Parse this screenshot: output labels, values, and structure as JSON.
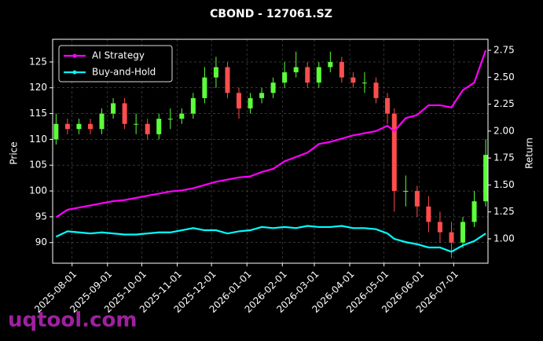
{
  "chart_data": {
    "type": "candlestick",
    "title": "CBOND - 127061.SZ",
    "ylabel": "Price",
    "y2label": "Return",
    "watermark": "uqtool.com",
    "x": [
      "2025-07-18",
      "2025-07-28",
      "2025-08-07",
      "2025-08-17",
      "2025-08-27",
      "2025-09-06",
      "2025-09-16",
      "2025-09-26",
      "2025-10-06",
      "2025-10-16",
      "2025-10-26",
      "2025-11-05",
      "2025-11-15",
      "2025-11-25",
      "2025-12-05",
      "2025-12-15",
      "2025-12-25",
      "2026-01-04",
      "2026-01-14",
      "2026-01-24",
      "2026-02-03",
      "2026-02-13",
      "2026-02-23",
      "2026-03-05",
      "2026-03-15",
      "2026-03-25",
      "2026-04-04",
      "2026-04-14",
      "2026-04-24",
      "2026-05-04",
      "2026-05-10",
      "2026-05-20",
      "2026-05-30",
      "2026-06-09",
      "2026-06-19",
      "2026-06-29",
      "2026-07-09",
      "2026-07-19",
      "2026-07-29"
    ],
    "open": [
      110,
      113,
      112,
      113,
      112,
      115,
      117,
      113,
      113,
      111,
      114,
      114,
      115,
      118,
      122,
      124,
      119,
      116,
      118,
      119,
      121,
      123,
      124,
      121,
      124,
      125,
      122,
      121,
      121,
      118,
      115,
      100,
      100,
      97,
      94,
      92,
      90,
      94,
      98
    ],
    "high": [
      115,
      114,
      114,
      114,
      116,
      118,
      118,
      115,
      114,
      115,
      116,
      116,
      119,
      124,
      126,
      125,
      120,
      119,
      120,
      122,
      125,
      127,
      125,
      125,
      127,
      126,
      123,
      123,
      122,
      119,
      116,
      103,
      101,
      99,
      96,
      94,
      95,
      100,
      110
    ],
    "low": [
      109,
      111,
      111,
      111,
      111,
      114,
      112,
      111,
      110,
      110,
      112,
      113,
      114,
      117,
      120,
      118,
      114,
      115,
      117,
      118,
      120,
      122,
      120,
      120,
      123,
      121,
      120,
      119,
      117,
      113,
      96,
      97,
      95,
      92,
      90,
      87,
      89,
      93,
      97
    ],
    "close": [
      113,
      112,
      113,
      112,
      115,
      117,
      113,
      113,
      111,
      114,
      114,
      115,
      118,
      122,
      124,
      119,
      116,
      118,
      119,
      121,
      123,
      124,
      121,
      124,
      125,
      122,
      121,
      121,
      118,
      115,
      100,
      100,
      97,
      94,
      92,
      90,
      94,
      98,
      107
    ],
    "up_color": "#5cff3a",
    "down_color": "#ff4d4d",
    "series": [
      {
        "name": "AI Strategy",
        "color": "#ff00ff",
        "axis": "y2",
        "values": [
          1.2,
          1.27,
          1.29,
          1.31,
          1.33,
          1.35,
          1.36,
          1.38,
          1.4,
          1.42,
          1.44,
          1.45,
          1.47,
          1.5,
          1.53,
          1.55,
          1.57,
          1.58,
          1.62,
          1.65,
          1.72,
          1.76,
          1.8,
          1.88,
          1.9,
          1.93,
          1.96,
          1.98,
          2.0,
          2.05,
          2.0,
          2.12,
          2.15,
          2.24,
          2.24,
          2.22,
          2.38,
          2.45,
          2.75
        ]
      },
      {
        "name": "Buy-and-Hold",
        "color": "#00ffff",
        "axis": "y2",
        "values": [
          1.02,
          1.07,
          1.06,
          1.05,
          1.06,
          1.05,
          1.04,
          1.04,
          1.05,
          1.06,
          1.06,
          1.08,
          1.1,
          1.08,
          1.08,
          1.05,
          1.07,
          1.08,
          1.11,
          1.1,
          1.11,
          1.1,
          1.12,
          1.11,
          1.11,
          1.12,
          1.1,
          1.1,
          1.09,
          1.05,
          1.0,
          0.97,
          0.95,
          0.92,
          0.92,
          0.88,
          0.94,
          0.98,
          1.05
        ]
      }
    ],
    "xlim": [
      "2025-07-15",
      "2026-07-31"
    ],
    "xticks": [
      "2025-08-01",
      "2025-09-01",
      "2025-10-01",
      "2025-11-01",
      "2025-12-01",
      "2026-01-01",
      "2026-02-01",
      "2026-03-01",
      "2026-04-01",
      "2026-05-01",
      "2026-06-01",
      "2026-07-01"
    ],
    "ylim": [
      86,
      129.4
    ],
    "yticks": [
      90,
      95,
      100,
      105,
      110,
      115,
      120,
      125
    ],
    "y2lim": [
      0.774,
      2.852
    ],
    "y2ticks": [
      {
        "value": 1,
        "label": "1.00"
      },
      {
        "value": 1.25,
        "label": "1.25"
      },
      {
        "value": 1.5,
        "label": "1.50"
      },
      {
        "value": 1.75,
        "label": "1.75"
      },
      {
        "value": 2,
        "label": "2.00"
      },
      {
        "value": 2.25,
        "label": "2.25"
      },
      {
        "value": 2.5,
        "label": "2.50"
      },
      {
        "value": 2.75,
        "label": "2.75"
      }
    ],
    "grid": true,
    "legend": "upper left"
  }
}
